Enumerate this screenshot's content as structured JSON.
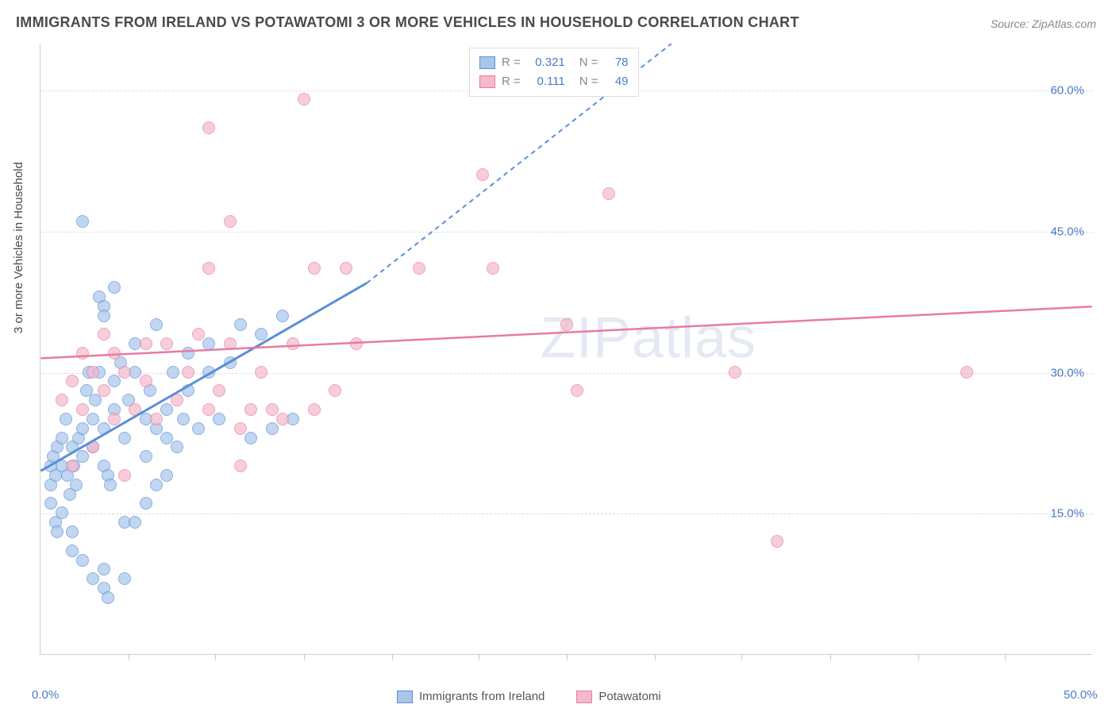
{
  "title": "IMMIGRANTS FROM IRELAND VS POTAWATOMI 3 OR MORE VEHICLES IN HOUSEHOLD CORRELATION CHART",
  "source": "Source: ZipAtlas.com",
  "watermark": "ZIPatlas",
  "ylabel": "3 or more Vehicles in Household",
  "chart": {
    "type": "scatter",
    "xlim": [
      0,
      50
    ],
    "ylim": [
      0,
      65
    ],
    "xticks": [
      0,
      50
    ],
    "xtick_labels": [
      "0.0%",
      "50.0%"
    ],
    "xtick_minor": [
      4.2,
      8.3,
      12.5,
      16.7,
      20.8,
      25,
      29.2,
      33.3,
      37.5,
      41.7,
      45.8
    ],
    "yticks": [
      15,
      30,
      45,
      60
    ],
    "ytick_labels": [
      "15.0%",
      "30.0%",
      "45.0%",
      "60.0%"
    ],
    "background_color": "#ffffff",
    "grid_color": "#dddddd",
    "marker_radius": 8,
    "marker_stroke_width": 1.2,
    "marker_fill_opacity": 0.25,
    "series": [
      {
        "name": "Immigrants from Ireland",
        "color": "#5b8fd6",
        "fill": "#a8c5ea",
        "r_value": "0.321",
        "n_value": "78",
        "trendline": {
          "x1": 0,
          "y1": 19.5,
          "x2": 15.5,
          "y2": 39.5,
          "dashed_to_x": 30,
          "dashed_to_y": 65
        },
        "points": [
          [
            0.5,
            20
          ],
          [
            0.5,
            18
          ],
          [
            0.6,
            21
          ],
          [
            0.7,
            19
          ],
          [
            0.8,
            22
          ],
          [
            0.5,
            16
          ],
          [
            0.7,
            14
          ],
          [
            0.8,
            13
          ],
          [
            1.0,
            20
          ],
          [
            1.0,
            23
          ],
          [
            1.2,
            25
          ],
          [
            1.3,
            19
          ],
          [
            1.4,
            17
          ],
          [
            1.5,
            22
          ],
          [
            1.6,
            20
          ],
          [
            1.7,
            18
          ],
          [
            1.8,
            23
          ],
          [
            2.0,
            21
          ],
          [
            2.0,
            24
          ],
          [
            2.2,
            28
          ],
          [
            2.3,
            30
          ],
          [
            2.5,
            22
          ],
          [
            2.5,
            25
          ],
          [
            2.6,
            27
          ],
          [
            2.8,
            30
          ],
          [
            3.0,
            20
          ],
          [
            3.0,
            24
          ],
          [
            3.2,
            19
          ],
          [
            3.3,
            18
          ],
          [
            3.5,
            26
          ],
          [
            3.5,
            29
          ],
          [
            3.8,
            31
          ],
          [
            4.0,
            23
          ],
          [
            4.0,
            14
          ],
          [
            4.2,
            27
          ],
          [
            4.5,
            30
          ],
          [
            4.5,
            33
          ],
          [
            5.0,
            21
          ],
          [
            5.0,
            25
          ],
          [
            5.0,
            16
          ],
          [
            5.2,
            28
          ],
          [
            5.5,
            24
          ],
          [
            5.5,
            35
          ],
          [
            6.0,
            26
          ],
          [
            6.0,
            23
          ],
          [
            6.3,
            30
          ],
          [
            6.5,
            22
          ],
          [
            6.8,
            25
          ],
          [
            7.0,
            32
          ],
          [
            7.0,
            28
          ],
          [
            7.5,
            24
          ],
          [
            8.0,
            30
          ],
          [
            8.0,
            33
          ],
          [
            8.5,
            25
          ],
          [
            9.0,
            31
          ],
          [
            9.5,
            35
          ],
          [
            10.0,
            23
          ],
          [
            10.5,
            34
          ],
          [
            11.0,
            24
          ],
          [
            11.5,
            36
          ],
          [
            12.0,
            25
          ],
          [
            1.5,
            11
          ],
          [
            2.0,
            10
          ],
          [
            2.5,
            8
          ],
          [
            3.0,
            9
          ],
          [
            3.0,
            7
          ],
          [
            3.2,
            6
          ],
          [
            4.0,
            8
          ],
          [
            2.0,
            46
          ],
          [
            2.8,
            38
          ],
          [
            3.0,
            37
          ],
          [
            3.5,
            39
          ],
          [
            3.0,
            36
          ],
          [
            1.0,
            15
          ],
          [
            1.5,
            13
          ],
          [
            4.5,
            14
          ],
          [
            5.5,
            18
          ],
          [
            6.0,
            19
          ]
        ]
      },
      {
        "name": "Potawatomi",
        "color": "#e87ba0",
        "fill": "#f5b8cc",
        "r_value": "0.111",
        "n_value": "49",
        "trendline": {
          "x1": 0,
          "y1": 31.5,
          "x2": 50,
          "y2": 37
        },
        "points": [
          [
            1.0,
            27
          ],
          [
            1.5,
            29
          ],
          [
            2.0,
            32
          ],
          [
            2.0,
            26
          ],
          [
            2.5,
            30
          ],
          [
            3.0,
            28
          ],
          [
            3.0,
            34
          ],
          [
            3.5,
            25
          ],
          [
            3.5,
            32
          ],
          [
            4.0,
            30
          ],
          [
            4.5,
            26
          ],
          [
            5.0,
            33
          ],
          [
            5.0,
            29
          ],
          [
            5.5,
            25
          ],
          [
            6.0,
            33
          ],
          [
            6.5,
            27
          ],
          [
            7.0,
            30
          ],
          [
            7.5,
            34
          ],
          [
            8.0,
            26
          ],
          [
            8.5,
            28
          ],
          [
            9.0,
            33
          ],
          [
            9.5,
            24
          ],
          [
            10.0,
            26
          ],
          [
            10.5,
            30
          ],
          [
            11.0,
            26
          ],
          [
            11.5,
            25
          ],
          [
            12.0,
            33
          ],
          [
            13.0,
            26
          ],
          [
            14.0,
            28
          ],
          [
            15.0,
            33
          ],
          [
            9.0,
            46
          ],
          [
            8.0,
            56
          ],
          [
            8.0,
            41
          ],
          [
            9.5,
            20
          ],
          [
            12.5,
            59
          ],
          [
            14.5,
            41
          ],
          [
            13.0,
            41
          ],
          [
            18.0,
            41
          ],
          [
            21.0,
            51
          ],
          [
            21.5,
            41
          ],
          [
            25.0,
            35
          ],
          [
            25.5,
            28
          ],
          [
            27.0,
            49
          ],
          [
            33.0,
            30
          ],
          [
            35.0,
            12
          ],
          [
            44.0,
            30
          ],
          [
            1.5,
            20
          ],
          [
            2.5,
            22
          ],
          [
            4.0,
            19
          ]
        ]
      }
    ]
  },
  "legend_top": {
    "rows": [
      {
        "swatch_fill": "#a8c5ea",
        "swatch_border": "#5b8fd6",
        "r_label": "R =",
        "r_val": "0.321",
        "n_label": "N =",
        "n_val": "78"
      },
      {
        "swatch_fill": "#f5b8cc",
        "swatch_border": "#e87ba0",
        "r_label": "R =",
        "r_val": "0.111",
        "n_label": "N =",
        "n_val": "49"
      }
    ]
  },
  "legend_bottom": {
    "items": [
      {
        "label": "Immigrants from Ireland",
        "fill": "#a8c5ea",
        "border": "#5b8fd6"
      },
      {
        "label": "Potawatomi",
        "fill": "#f5b8cc",
        "border": "#e87ba0"
      }
    ]
  }
}
